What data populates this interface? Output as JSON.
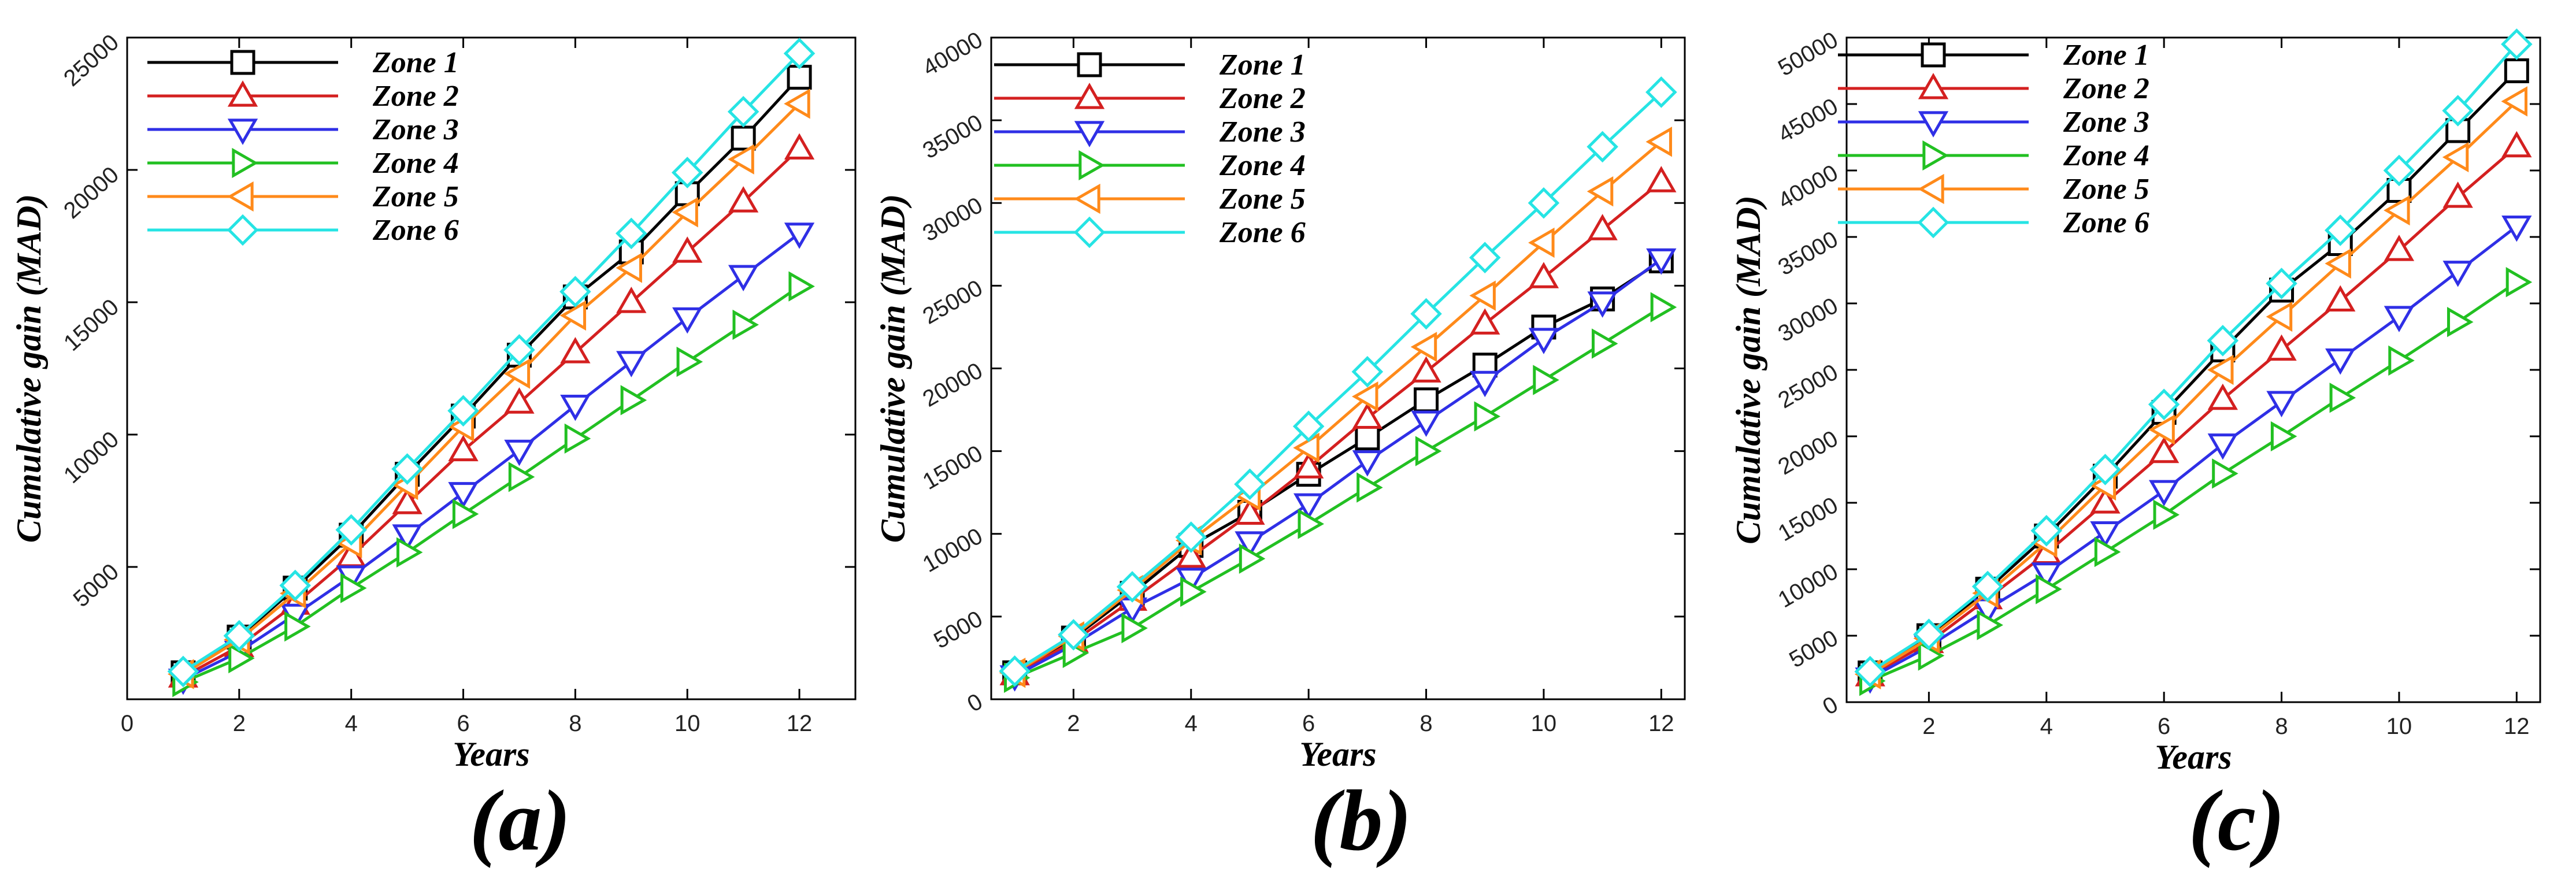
{
  "figure": {
    "panel_labels": [
      "(a)",
      "(b)",
      "(c)"
    ]
  },
  "chart_data": [
    {
      "type": "line",
      "panel_label": "(a)",
      "xlabel": "Years",
      "ylabel": "Cumulative gain (MAD)",
      "xlim": [
        0,
        13
      ],
      "ylim": [
        0,
        25000
      ],
      "xticks": [
        0,
        2,
        4,
        6,
        8,
        10,
        12
      ],
      "yticks": [
        5000,
        10000,
        15000,
        20000,
        25000
      ],
      "legend_position": "top-left",
      "x": [
        1,
        2,
        3,
        4,
        5,
        6,
        7,
        8,
        9,
        10,
        11,
        12
      ],
      "series": [
        {
          "name": "Zone 1",
          "color": "#000000",
          "marker": "square",
          "values": [
            1000,
            2350,
            4200,
            6200,
            8500,
            10700,
            13000,
            15200,
            16900,
            19100,
            21200,
            23500
          ]
        },
        {
          "name": "Zone 2",
          "color": "#d42020",
          "marker": "triangle-up",
          "values": [
            850,
            2000,
            3600,
            5400,
            7400,
            9400,
            11200,
            13100,
            15000,
            16900,
            18800,
            20800
          ]
        },
        {
          "name": "Zone 3",
          "color": "#2f2fe6",
          "marker": "triangle-down",
          "values": [
            750,
            1800,
            3200,
            4650,
            6200,
            7800,
            9400,
            11100,
            12750,
            14400,
            16000,
            17600
          ]
        },
        {
          "name": "Zone 4",
          "color": "#22c022",
          "marker": "triangle-right",
          "values": [
            650,
            1550,
            2750,
            4200,
            5550,
            7000,
            8400,
            9850,
            11300,
            12750,
            14150,
            15600
          ]
        },
        {
          "name": "Zone 5",
          "color": "#ff8a1a",
          "marker": "triangle-left",
          "values": [
            950,
            2250,
            4000,
            5900,
            8100,
            10300,
            12300,
            14500,
            16300,
            18400,
            20400,
            22500
          ]
        },
        {
          "name": "Zone 6",
          "color": "#26e4e4",
          "marker": "diamond",
          "values": [
            1050,
            2400,
            4300,
            6400,
            8700,
            10900,
            13200,
            15400,
            17600,
            19900,
            22200,
            24400
          ]
        }
      ]
    },
    {
      "type": "line",
      "panel_label": "(b)",
      "xlabel": "Years",
      "ylabel": "Cumulative gain (MAD)",
      "xlim": [
        0.6,
        12.4
      ],
      "ylim": [
        0,
        40000
      ],
      "xticks": [
        2,
        4,
        6,
        8,
        10,
        12
      ],
      "yticks": [
        0,
        5000,
        10000,
        15000,
        20000,
        25000,
        30000,
        35000,
        40000
      ],
      "legend_position": "top-left",
      "x": [
        1,
        2,
        3,
        4,
        5,
        6,
        7,
        8,
        9,
        10,
        11,
        12
      ],
      "series": [
        {
          "name": "Zone 1",
          "color": "#000000",
          "marker": "square",
          "values": [
            1600,
            3700,
            6400,
            9300,
            11300,
            13600,
            15800,
            18100,
            20200,
            22500,
            24200,
            26500
          ]
        },
        {
          "name": "Zone 2",
          "color": "#d42020",
          "marker": "triangle-up",
          "values": [
            1500,
            3500,
            6000,
            8600,
            11200,
            14000,
            17000,
            19800,
            22700,
            25500,
            28400,
            31300
          ]
        },
        {
          "name": "Zone 3",
          "color": "#2f2fe6",
          "marker": "triangle-down",
          "values": [
            1400,
            3300,
            5500,
            7300,
            9500,
            11800,
            14400,
            16800,
            19200,
            21800,
            24000,
            26600
          ]
        },
        {
          "name": "Zone 4",
          "color": "#22c022",
          "marker": "triangle-right",
          "values": [
            1300,
            2800,
            4300,
            6500,
            8500,
            10600,
            12800,
            15000,
            17100,
            19300,
            21500,
            23700
          ]
        },
        {
          "name": "Zone 5",
          "color": "#ff8a1a",
          "marker": "triangle-left",
          "values": [
            1600,
            3800,
            6600,
            9600,
            12300,
            15200,
            18300,
            21300,
            24400,
            27600,
            30700,
            33700
          ]
        },
        {
          "name": "Zone 6",
          "color": "#26e4e4",
          "marker": "diamond",
          "values": [
            1700,
            3900,
            6800,
            9800,
            13000,
            16500,
            19800,
            23300,
            26700,
            30000,
            33400,
            36700
          ]
        }
      ]
    },
    {
      "type": "line",
      "panel_label": "(c)",
      "xlabel": "Years",
      "ylabel": "Cumulative gain (MAD)",
      "xlim": [
        0.6,
        12.4
      ],
      "ylim": [
        0,
        50000
      ],
      "xticks": [
        2,
        4,
        6,
        8,
        10,
        12
      ],
      "yticks": [
        0,
        5000,
        10000,
        15000,
        20000,
        25000,
        30000,
        35000,
        40000,
        45000,
        50000
      ],
      "legend_position": "top-left",
      "x": [
        1,
        2,
        3,
        4,
        5,
        6,
        7,
        8,
        9,
        10,
        11,
        12
      ],
      "series": [
        {
          "name": "Zone 1",
          "color": "#000000",
          "marker": "square",
          "values": [
            2200,
            5000,
            8500,
            12500,
            17000,
            21800,
            26500,
            31000,
            34500,
            38500,
            43000,
            47500
          ]
        },
        {
          "name": "Zone 2",
          "color": "#d42020",
          "marker": "triangle-up",
          "values": [
            2000,
            4500,
            7800,
            11200,
            15000,
            18800,
            22800,
            26500,
            30200,
            34000,
            38000,
            41800
          ]
        },
        {
          "name": "Zone 3",
          "color": "#2f2fe6",
          "marker": "triangle-down",
          "values": [
            1800,
            4200,
            7000,
            9700,
            12800,
            15900,
            19400,
            22600,
            25800,
            29000,
            32400,
            35800
          ]
        },
        {
          "name": "Zone 4",
          "color": "#22c022",
          "marker": "triangle-right",
          "values": [
            1600,
            3500,
            5800,
            8500,
            11300,
            14100,
            17200,
            20000,
            22900,
            25700,
            28600,
            31600
          ]
        },
        {
          "name": "Zone 5",
          "color": "#ff8a1a",
          "marker": "triangle-left",
          "values": [
            2100,
            4800,
            8200,
            12000,
            16300,
            20500,
            25000,
            29000,
            33000,
            37000,
            41000,
            45200
          ]
        },
        {
          "name": "Zone 6",
          "color": "#26e4e4",
          "marker": "diamond",
          "values": [
            2300,
            5100,
            8700,
            12900,
            17500,
            22400,
            27200,
            31500,
            35500,
            40000,
            44500,
            49500
          ]
        }
      ]
    }
  ]
}
